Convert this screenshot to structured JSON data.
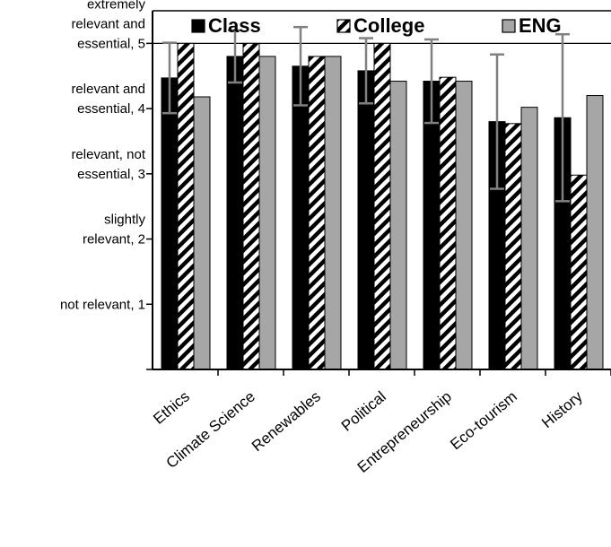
{
  "chart_data": {
    "type": "bar",
    "title": "",
    "xlabel": "",
    "ylabel": "",
    "ylim": [
      0,
      5.5
    ],
    "yticks": [
      {
        "value": 1,
        "lines": [
          "not relevant, 1"
        ]
      },
      {
        "value": 2,
        "lines": [
          "slightly",
          "relevant, 2"
        ]
      },
      {
        "value": 3,
        "lines": [
          "relevant, not",
          "essential, 3"
        ]
      },
      {
        "value": 4,
        "lines": [
          "relevant and",
          "essential, 4"
        ]
      },
      {
        "value": 5,
        "lines": [
          "extremely",
          "relevant and",
          "essential, 5"
        ]
      }
    ],
    "gridlines": [
      5
    ],
    "legend_position": "top",
    "categories": [
      "Ethics",
      "Climate Science",
      "Renewables",
      "Political",
      "Entrepreneurship",
      "Eco-tourism",
      "History"
    ],
    "series": [
      {
        "name": "Class",
        "values": [
          4.47,
          4.8,
          4.65,
          4.58,
          4.42,
          3.8,
          3.86
        ],
        "errors": [
          0.54,
          0.4,
          0.6,
          0.5,
          0.64,
          1.03,
          1.28
        ]
      },
      {
        "name": "College",
        "values": [
          5.0,
          5.0,
          4.8,
          5.0,
          4.48,
          3.77,
          2.98
        ]
      },
      {
        "name": "ENG",
        "values": [
          4.18,
          4.8,
          4.8,
          4.42,
          4.42,
          4.02,
          4.2
        ]
      }
    ],
    "colors": {
      "Class": "#000000",
      "College": "#ffffff",
      "ENG": "#a6a6a6",
      "error_bar": "#808080"
    }
  }
}
